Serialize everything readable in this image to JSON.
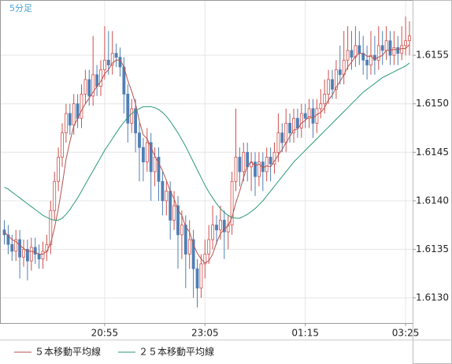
{
  "chart_data": {
    "type": "candlestick",
    "title": "5分足",
    "categories": [
      null,
      null,
      null,
      null,
      null,
      null,
      null,
      null,
      null,
      null,
      null,
      null,
      null,
      null,
      null,
      null,
      null,
      null,
      null,
      null,
      null,
      null,
      null,
      null,
      null,
      null,
      "20:55",
      null,
      null,
      null,
      null,
      null,
      null,
      null,
      null,
      null,
      null,
      null,
      null,
      null,
      null,
      null,
      null,
      null,
      null,
      null,
      null,
      null,
      null,
      null,
      null,
      null,
      "23:05",
      null,
      null,
      null,
      null,
      null,
      null,
      null,
      null,
      null,
      null,
      null,
      null,
      null,
      null,
      null,
      null,
      null,
      null,
      null,
      null,
      null,
      null,
      null,
      null,
      null,
      "01:15",
      null,
      null,
      null,
      null,
      null,
      null,
      null,
      null,
      null,
      null,
      null,
      null,
      null,
      null,
      null,
      null,
      null,
      null,
      null,
      null,
      null,
      null,
      null,
      null,
      null,
      "03:25",
      null
    ],
    "open": [
      1.6137,
      1.61365,
      1.61355,
      1.61348,
      1.6136,
      1.61342,
      1.6135,
      1.61338,
      1.61352,
      1.61345,
      1.6134,
      1.61348,
      1.61355,
      1.6139,
      1.6142,
      1.61445,
      1.6147,
      1.6149,
      1.61478,
      1.615,
      1.61485,
      1.6151,
      1.61525,
      1.61508,
      1.6153,
      1.61518,
      1.61535,
      1.61545,
      1.6154,
      1.61552,
      1.61548,
      1.61538,
      1.6151,
      1.6148,
      1.61495,
      1.6147,
      1.61455,
      1.6144,
      1.6146,
      1.6143,
      1.61445,
      1.6142,
      1.614,
      1.6141,
      1.6138,
      1.61395,
      1.61365,
      1.61375,
      1.61345,
      1.6136,
      1.6133,
      1.6131,
      1.61335,
      1.61345,
      1.6136,
      1.61375,
      1.6137,
      1.6138,
      1.61368,
      1.61375,
      1.6142,
      1.61445,
      1.6143,
      1.6145,
      1.61435,
      1.6144,
      1.61425,
      1.6144,
      1.6143,
      1.61445,
      1.61438,
      1.6145,
      1.6147,
      1.6146,
      1.6148,
      1.6147,
      1.61485,
      1.61475,
      1.6149,
      1.61485,
      1.61495,
      1.6148,
      1.61495,
      1.615,
      1.6151,
      1.61525,
      1.61515,
      1.61535,
      1.6153,
      1.61545,
      1.61555,
      1.61548,
      1.6156,
      1.61552,
      1.61545,
      1.6154,
      1.6155,
      1.61545,
      1.6156,
      1.61555,
      1.61565,
      1.6155,
      1.61558,
      1.61552,
      1.6156,
      1.61565
    ],
    "high": [
      1.6138,
      1.61375,
      1.61365,
      1.6137,
      1.6137,
      1.6136,
      1.6136,
      1.61362,
      1.61362,
      1.61355,
      1.61358,
      1.61365,
      1.614,
      1.6143,
      1.61455,
      1.6148,
      1.615,
      1.615,
      1.6151,
      1.6151,
      1.6152,
      1.61535,
      1.61535,
      1.6157,
      1.6154,
      1.61545,
      1.6158,
      1.61575,
      1.61575,
      1.61562,
      1.61558,
      1.61548,
      1.6152,
      1.61505,
      1.61505,
      1.6148,
      1.61465,
      1.61475,
      1.6147,
      1.61455,
      1.61455,
      1.6143,
      1.6142,
      1.6142,
      1.6141,
      1.61405,
      1.6139,
      1.61385,
      1.6138,
      1.6137,
      1.6134,
      1.61345,
      1.6136,
      1.61375,
      1.61395,
      1.61385,
      1.61395,
      1.6139,
      1.61385,
      1.6143,
      1.61495,
      1.61455,
      1.6146,
      1.6146,
      1.6145,
      1.6145,
      1.6145,
      1.6145,
      1.61455,
      1.61455,
      1.6146,
      1.6149,
      1.6148,
      1.61495,
      1.6149,
      1.61495,
      1.61495,
      1.615,
      1.615,
      1.61505,
      1.61505,
      1.61505,
      1.61515,
      1.61525,
      1.61535,
      1.61535,
      1.61545,
      1.6156,
      1.61575,
      1.6158,
      1.61575,
      1.6158,
      1.61575,
      1.6157,
      1.6156,
      1.61575,
      1.6157,
      1.6158,
      1.61575,
      1.6158,
      1.61575,
      1.61575,
      1.6157,
      1.6158,
      1.6159,
      1.61585
    ],
    "low": [
      1.61355,
      1.61345,
      1.61338,
      1.61338,
      1.6132,
      1.61332,
      1.61318,
      1.61328,
      1.61335,
      1.6133,
      1.6133,
      1.61338,
      1.61345,
      1.6138,
      1.6141,
      1.61435,
      1.6146,
      1.61468,
      1.61468,
      1.61475,
      1.61475,
      1.615,
      1.61498,
      1.61498,
      1.61508,
      1.61508,
      1.61525,
      1.6153,
      1.6153,
      1.61538,
      1.61528,
      1.6149,
      1.6146,
      1.6147,
      1.6145,
      1.6142,
      1.6142,
      1.6143,
      1.614,
      1.61415,
      1.614,
      1.61385,
      1.61385,
      1.6136,
      1.6137,
      1.6133,
      1.6134,
      1.6131,
      1.6133,
      1.613,
      1.6129,
      1.613,
      1.6132,
      1.61335,
      1.6135,
      1.61355,
      1.6136,
      1.6134,
      1.6135,
      1.61365,
      1.6141,
      1.61415,
      1.6142,
      1.6142,
      1.6141,
      1.61405,
      1.61415,
      1.6141,
      1.6142,
      1.6142,
      1.61428,
      1.6144,
      1.6145,
      1.6145,
      1.6146,
      1.6146,
      1.61465,
      1.61465,
      1.61475,
      1.61475,
      1.61465,
      1.6147,
      1.61485,
      1.6149,
      1.615,
      1.61505,
      1.61505,
      1.6152,
      1.6152,
      1.61535,
      1.61535,
      1.61538,
      1.6154,
      1.6153,
      1.61525,
      1.6153,
      1.6153,
      1.61535,
      1.6154,
      1.61545,
      1.6154,
      1.6154,
      1.6154,
      1.61545,
      1.6155,
      1.6155
    ],
    "close": [
      1.61365,
      1.61355,
      1.61348,
      1.6136,
      1.61342,
      1.6135,
      1.61338,
      1.61352,
      1.61345,
      1.6134,
      1.61348,
      1.61355,
      1.6139,
      1.6142,
      1.61445,
      1.6147,
      1.6149,
      1.61478,
      1.615,
      1.61485,
      1.6151,
      1.61525,
      1.61508,
      1.6153,
      1.61518,
      1.61535,
      1.61545,
      1.6154,
      1.61552,
      1.61548,
      1.61538,
      1.6151,
      1.6148,
      1.61495,
      1.6147,
      1.61455,
      1.6144,
      1.6146,
      1.6143,
      1.61445,
      1.6142,
      1.614,
      1.6141,
      1.6138,
      1.61395,
      1.61365,
      1.61375,
      1.61345,
      1.6136,
      1.6133,
      1.6131,
      1.61335,
      1.61345,
      1.6136,
      1.61375,
      1.6137,
      1.6138,
      1.61368,
      1.61375,
      1.6142,
      1.61445,
      1.6143,
      1.6145,
      1.61435,
      1.6144,
      1.61425,
      1.6144,
      1.6143,
      1.61445,
      1.61438,
      1.6145,
      1.6147,
      1.6146,
      1.6148,
      1.6147,
      1.61485,
      1.61475,
      1.6149,
      1.61485,
      1.61495,
      1.6148,
      1.61495,
      1.615,
      1.6151,
      1.61525,
      1.61515,
      1.61535,
      1.6153,
      1.61545,
      1.61555,
      1.61548,
      1.6156,
      1.61552,
      1.61545,
      1.6154,
      1.6155,
      1.61545,
      1.6156,
      1.61555,
      1.61565,
      1.6155,
      1.61558,
      1.61552,
      1.6156,
      1.61565,
      1.6157
    ],
    "up_color": "#d0504c",
    "down_color": "#4f7fb5",
    "series": [
      {
        "name": "５本移動平均線",
        "color": "#b4524e",
        "values": [
          1.61368,
          1.61364,
          1.6136,
          1.61358,
          1.61354,
          1.61351,
          1.61348,
          1.61348,
          1.61347,
          1.61345,
          1.61345,
          1.61348,
          1.61356,
          1.61372,
          1.61392,
          1.61416,
          1.61443,
          1.61461,
          1.61477,
          1.61485,
          1.61493,
          1.615,
          1.61506,
          1.61512,
          1.61518,
          1.61523,
          1.61531,
          1.61535,
          1.61542,
          1.61545,
          1.61545,
          1.61538,
          1.61524,
          1.61513,
          1.615,
          1.61482,
          1.61468,
          1.61464,
          1.61455,
          1.61446,
          1.61439,
          1.61431,
          1.61421,
          1.6141,
          1.61402,
          1.6139,
          1.61385,
          1.61373,
          1.61368,
          1.61355,
          1.61346,
          1.6134,
          1.61336,
          1.61338,
          1.61345,
          1.61357,
          1.61366,
          1.61371,
          1.61374,
          1.61383,
          1.61398,
          1.6141,
          1.61424,
          1.61436,
          1.6144,
          1.61436,
          1.61438,
          1.61434,
          1.61436,
          1.61435,
          1.61441,
          1.61447,
          1.61453,
          1.6146,
          1.61466,
          1.61473,
          1.61474,
          1.6148,
          1.61483,
          1.61487,
          1.61485,
          1.61489,
          1.61491,
          1.61496,
          1.61504,
          1.61509,
          1.61517,
          1.61523,
          1.6153,
          1.61538,
          1.61543,
          1.61549,
          1.61552,
          1.61552,
          1.61549,
          1.61549,
          1.61546,
          1.61548,
          1.6155,
          1.61555,
          1.61555,
          1.61556,
          1.61556,
          1.61557,
          1.61557,
          1.61561
        ]
      },
      {
        "name": "２５本移動平均線",
        "color": "#2a9a78",
        "values": [
          1.61414,
          1.61412,
          1.61409,
          1.61406,
          1.61403,
          1.614,
          1.61397,
          1.61394,
          1.61391,
          1.61388,
          1.61385,
          1.61383,
          1.61381,
          1.6138,
          1.6138,
          1.61382,
          1.61386,
          1.61391,
          1.61397,
          1.61403,
          1.6141,
          1.61417,
          1.61424,
          1.61431,
          1.61438,
          1.61445,
          1.61452,
          1.61458,
          1.61464,
          1.6147,
          1.61476,
          1.61481,
          1.61486,
          1.6149,
          1.61493,
          1.61495,
          1.61497,
          1.61497,
          1.61497,
          1.61496,
          1.61494,
          1.61491,
          1.61487,
          1.61482,
          1.61476,
          1.6147,
          1.61463,
          1.61456,
          1.61448,
          1.6144,
          1.61432,
          1.61424,
          1.61416,
          1.61409,
          1.61403,
          1.61397,
          1.61392,
          1.61388,
          1.61385,
          1.61383,
          1.61382,
          1.61382,
          1.61384,
          1.61386,
          1.61389,
          1.61392,
          1.61396,
          1.614,
          1.61405,
          1.6141,
          1.61415,
          1.6142,
          1.61425,
          1.6143,
          1.61435,
          1.6144,
          1.61444,
          1.61448,
          1.61452,
          1.61456,
          1.6146,
          1.61464,
          1.61468,
          1.61472,
          1.61476,
          1.6148,
          1.61484,
          1.61488,
          1.61492,
          1.61496,
          1.615,
          1.61504,
          1.61508,
          1.61512,
          1.61515,
          1.61518,
          1.61521,
          1.61524,
          1.61527,
          1.61529,
          1.61531,
          1.61533,
          1.61535,
          1.61537,
          1.61539,
          1.61542
        ]
      }
    ],
    "ylim": [
      1.61274,
      1.61607
    ],
    "yticks": [
      {
        "value": 1.613,
        "label": "1.6130"
      },
      {
        "value": 1.6135,
        "label": "1.6135"
      },
      {
        "value": 1.614,
        "label": "1.6140"
      },
      {
        "value": 1.6145,
        "label": "1.6145"
      },
      {
        "value": 1.615,
        "label": "1.6150"
      },
      {
        "value": 1.6155,
        "label": "1.6155"
      }
    ],
    "grid": true
  }
}
